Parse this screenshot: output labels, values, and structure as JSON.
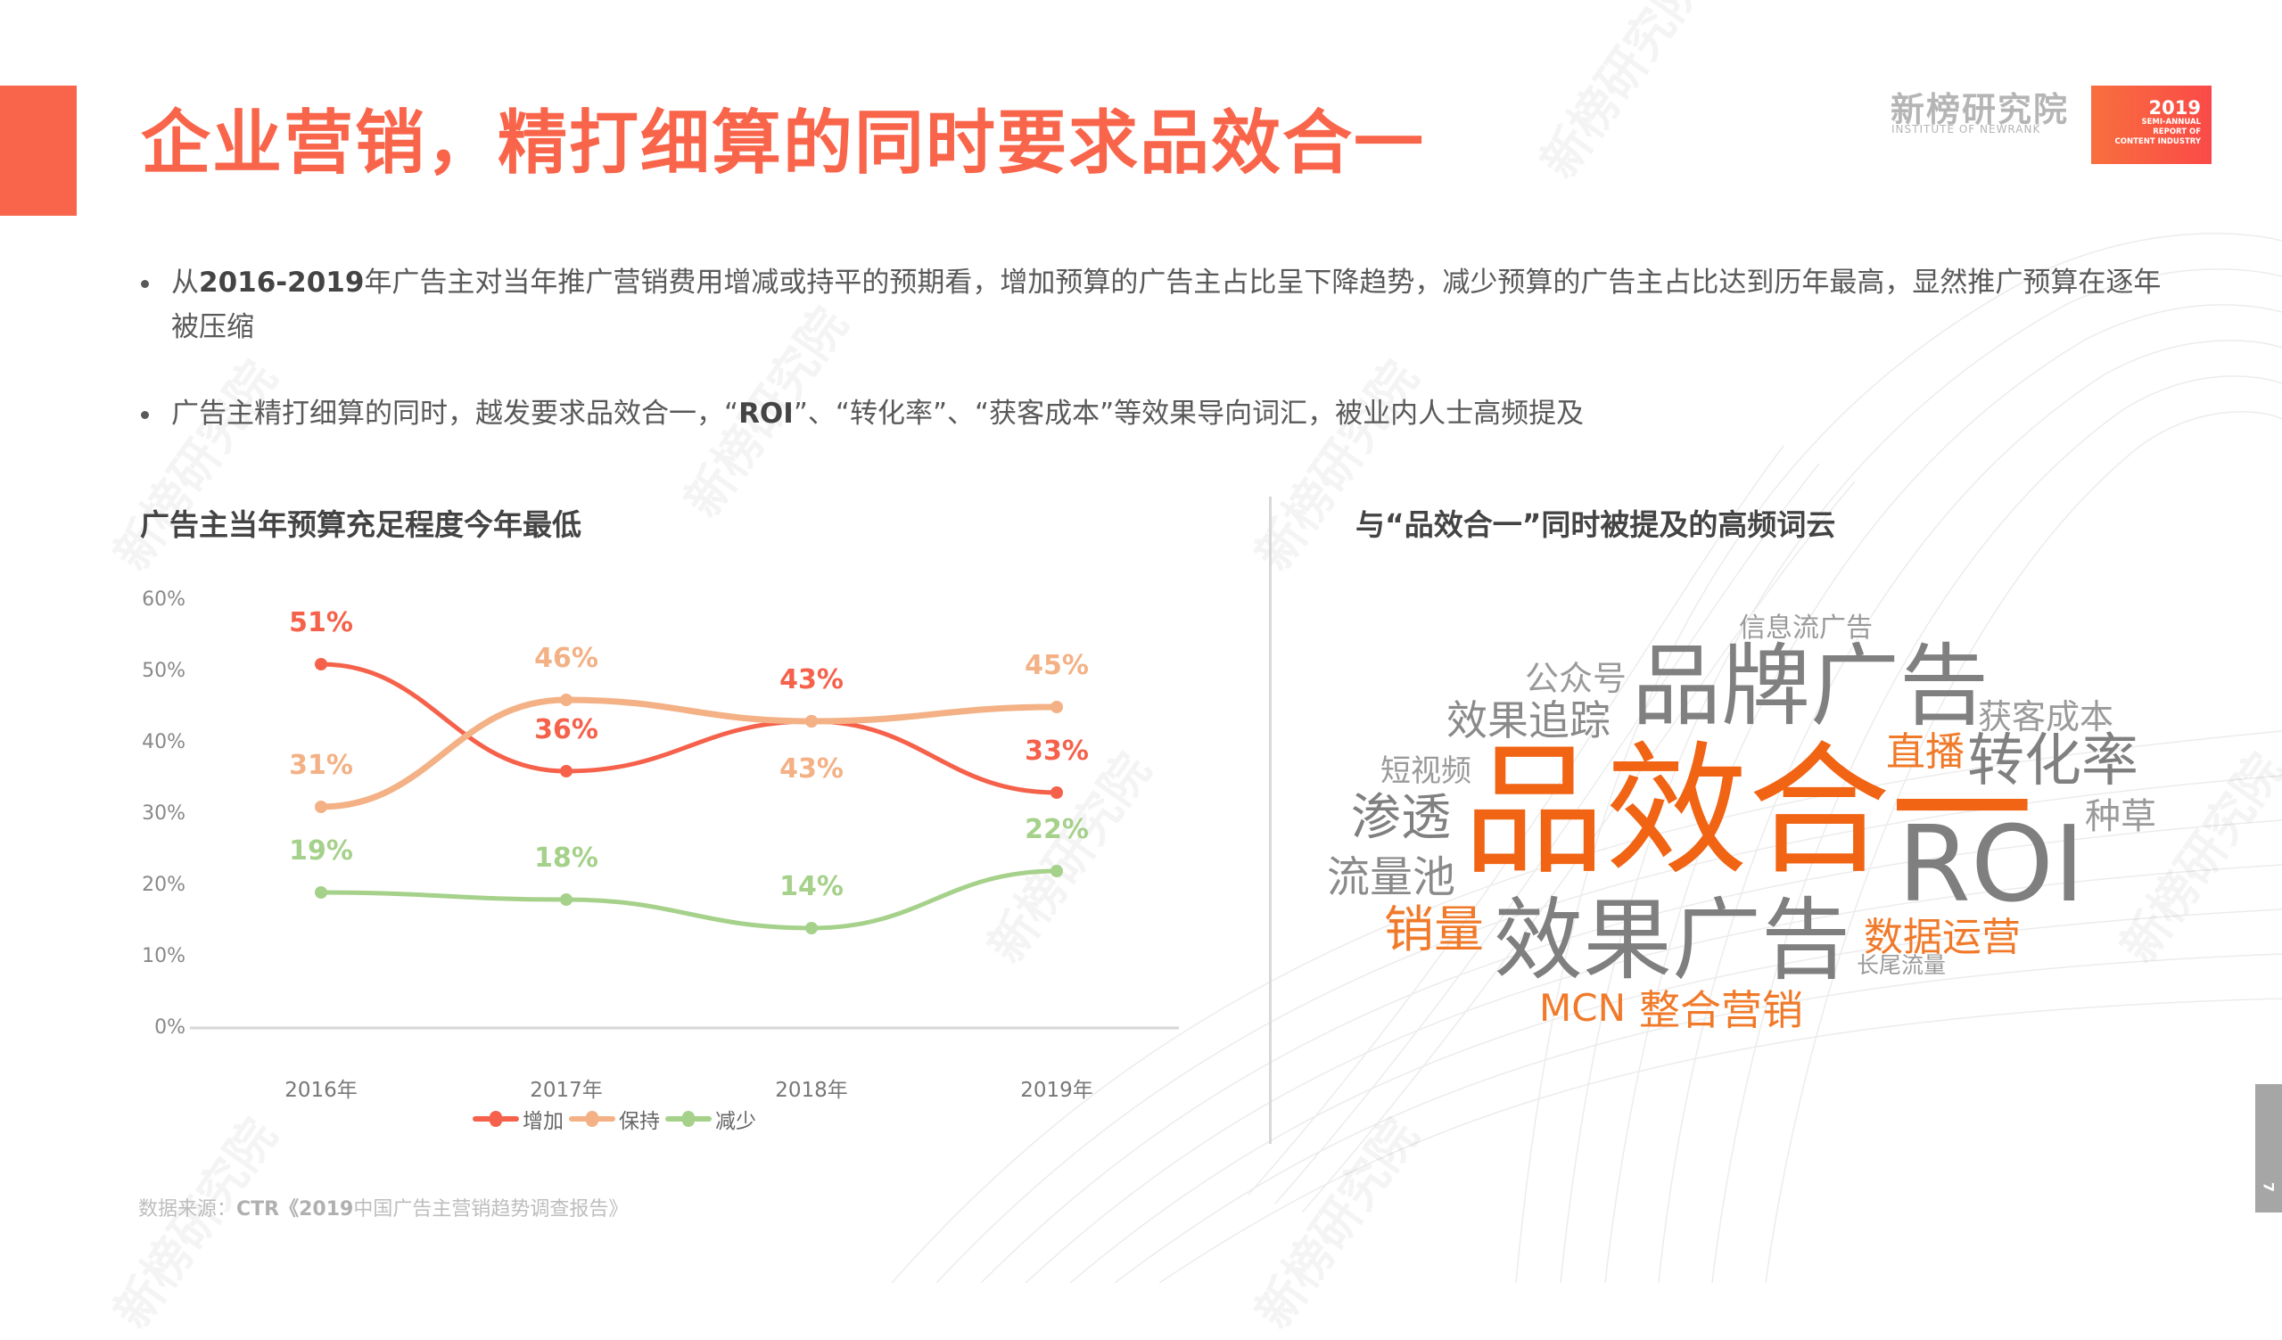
{
  "header": {
    "title": "企业营销，精打细算的同时要求品效合一",
    "logo_text": "新榜研究院",
    "logo_subtext": "INSTITUTE OF NEWRANK",
    "badge_year": "2019",
    "badge_line1": "SEMI-ANNUAL",
    "badge_line2": "REPORT OF",
    "badge_line3": "CONTENT INDUSTRY"
  },
  "bullets": [
    {
      "prefix": "从",
      "bold": "2016-2019",
      "text": "年广告主对当年推广营销费用增减或持平的预期看，增加预算的广告主占比呈下降趋势，减少预算的广告主占比达到历年最高，显然推广预算在逐年被压缩"
    },
    {
      "pre": "广告主精打细算的同时，越发要求品效合一，“",
      "bold": "ROI",
      "post": "”、“转化率”、“获客成本”等效果导向词汇，被业内人士高频提及"
    }
  ],
  "left_section": {
    "title": "广告主当年预算充足程度今年最低"
  },
  "right_section": {
    "title": "与“品效合一”同时被提及的高频词云"
  },
  "chart_data": {
    "type": "line",
    "title": "广告主当年预算充足程度今年最低",
    "categories": [
      "2016年",
      "2017年",
      "2018年",
      "2019年"
    ],
    "series": [
      {
        "name": "增加",
        "color": "#f5614a",
        "values": [
          51,
          36,
          43,
          33
        ],
        "labels": [
          "51%",
          "36%",
          "43%",
          "33%"
        ]
      },
      {
        "name": "保持",
        "color": "#f3b185",
        "values": [
          31,
          46,
          43,
          45
        ],
        "labels": [
          "31%",
          "46%",
          "43%",
          "45%"
        ]
      },
      {
        "name": "减少",
        "color": "#a5d18a",
        "values": [
          19,
          18,
          14,
          22
        ],
        "labels": [
          "19%",
          "18%",
          "14%",
          "22%"
        ]
      }
    ],
    "yticks": [
      "60%",
      "50%",
      "40%",
      "30%",
      "20%",
      "10%",
      "0%"
    ],
    "ylim": [
      0,
      60
    ],
    "xlabel": "",
    "ylabel": "",
    "grid": false,
    "legend_position": "bottom"
  },
  "word_cloud": {
    "words": [
      {
        "text": "信息流广告",
        "color": "#9a9a9a"
      },
      {
        "text": "公众号",
        "color": "#9a9a9a"
      },
      {
        "text": "品牌广告",
        "color": "#808080"
      },
      {
        "text": "获客成本",
        "color": "#9a9a9a"
      },
      {
        "text": "效果追踪",
        "color": "#8a8a8a"
      },
      {
        "text": "直播",
        "color": "#f07a2a"
      },
      {
        "text": "转化率",
        "color": "#808080"
      },
      {
        "text": "短视频",
        "color": "#9a9a9a"
      },
      {
        "text": "品效合一",
        "color": "#f06414"
      },
      {
        "text": "渗透",
        "color": "#808080"
      },
      {
        "text": "种草",
        "color": "#9a9a9a"
      },
      {
        "text": "ROI",
        "color": "#7f7f7f"
      },
      {
        "text": "流量池",
        "color": "#8a8a8a"
      },
      {
        "text": "销量",
        "color": "#f07a2a"
      },
      {
        "text": "效果广告",
        "color": "#7f7f7f"
      },
      {
        "text": "数据运营",
        "color": "#f07a2a"
      },
      {
        "text": "长尾流量",
        "color": "#9a9a9a"
      },
      {
        "text": "MCN",
        "color": "#f07a2a"
      },
      {
        "text": "整合营销",
        "color": "#f07a2a"
      }
    ]
  },
  "footer": {
    "source_prefix": "数据来源：",
    "source_bold": "CTR《2019",
    "source_rest": "中国广告主营销趋势调查报告》",
    "page_number": "7"
  },
  "colors": {
    "accent": "#f9654b",
    "increase": "#f5614a",
    "maintain": "#f3b185",
    "decrease": "#a5d18a"
  }
}
